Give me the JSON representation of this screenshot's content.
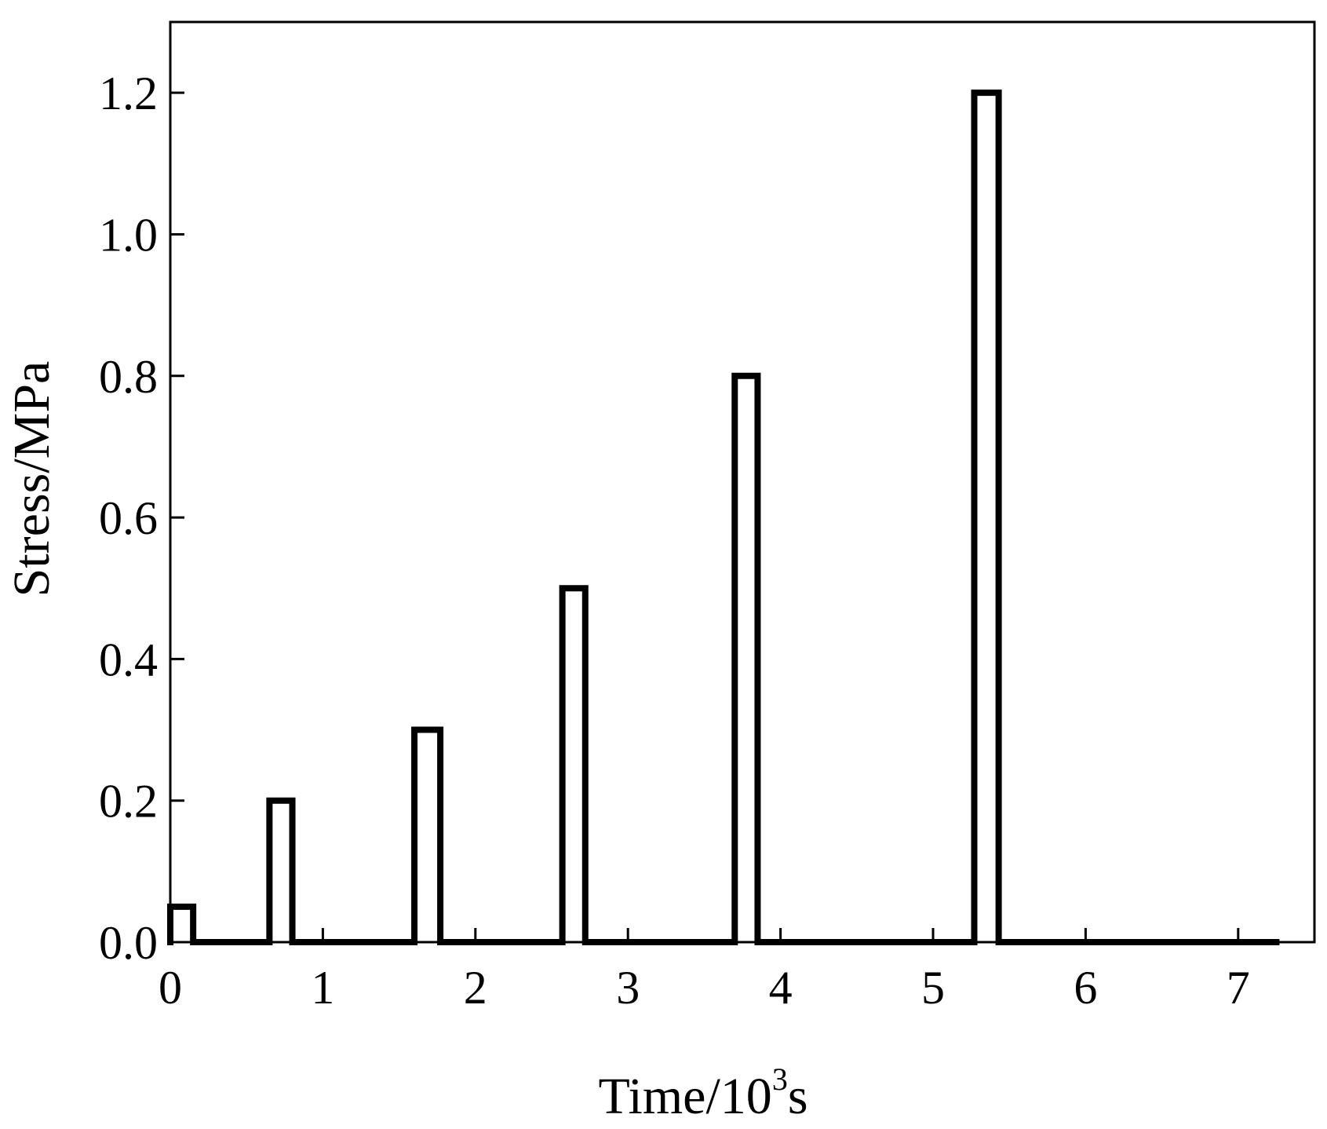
{
  "chart_data": {
    "type": "line",
    "title": "",
    "xlabel": "Time/10",
    "xlabel_superscript": "3",
    "xlabel_suffix": "s",
    "ylabel": "Stress/MPa",
    "xlim": [
      0,
      7.5
    ],
    "ylim": [
      0,
      1.3
    ],
    "x_ticks": [
      0,
      1,
      2,
      3,
      4,
      5,
      6,
      7
    ],
    "x_tick_labels": [
      "0",
      "1",
      "2",
      "3",
      "4",
      "5",
      "6",
      "7"
    ],
    "y_ticks": [
      0,
      0.2,
      0.4,
      0.6,
      0.8,
      1.0,
      1.2
    ],
    "y_tick_labels": [
      "0.0",
      "0.2",
      "0.4",
      "0.6",
      "0.8",
      "1.0",
      "1.2"
    ],
    "grid": false,
    "series": [
      {
        "x": [
          0,
          0,
          0.15,
          0.15,
          0.65,
          0.65,
          0.8,
          0.8,
          1.6,
          1.6,
          1.77,
          1.77,
          2.57,
          2.57,
          2.72,
          2.72,
          3.7,
          3.7,
          3.85,
          3.85,
          5.27,
          5.27,
          5.43,
          5.43,
          7.25
        ],
        "y": [
          0,
          0.05,
          0.05,
          0,
          0,
          0.2,
          0.2,
          0,
          0,
          0.3,
          0.3,
          0,
          0,
          0.5,
          0.5,
          0,
          0,
          0.8,
          0.8,
          0,
          0,
          1.2,
          1.2,
          0,
          0
        ],
        "color": "#000000"
      }
    ]
  }
}
